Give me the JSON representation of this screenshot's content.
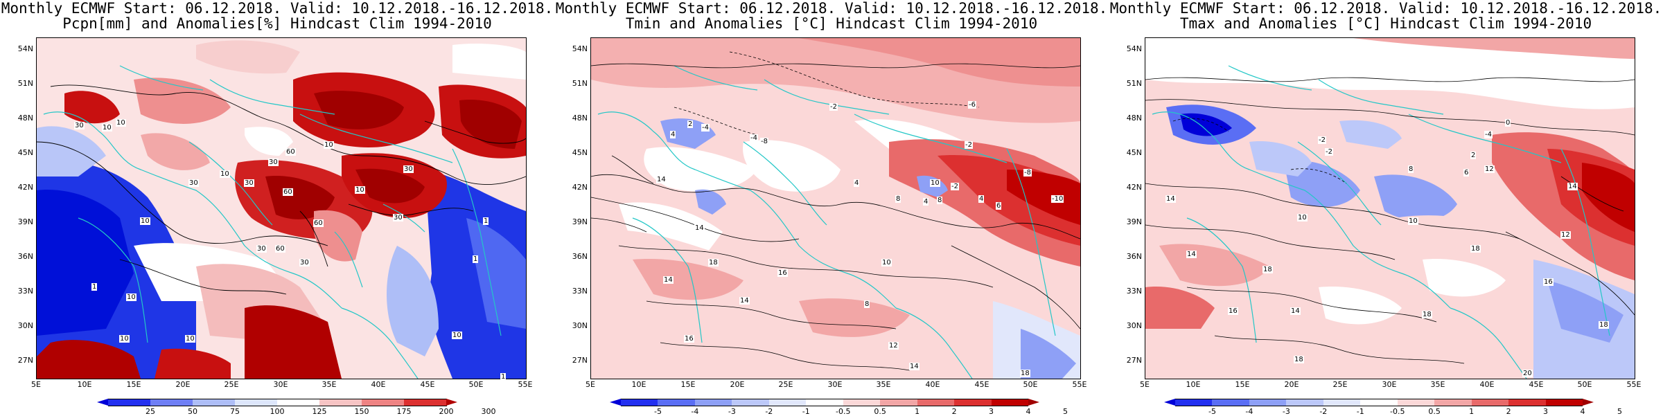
{
  "panels": [
    {
      "id": "pcpn",
      "title_line1": "Monthly ECMWF Start: 06.12.2018. Valid: 10.12.2018.-16.12.2018.",
      "title_line2": "Pcpn[mm] and Anomalies[%] Hindcast Clim 1994-2010",
      "colorbar": {
        "labels": [
          "25",
          "50",
          "75",
          "100",
          "125",
          "150",
          "175",
          "200",
          "300"
        ],
        "colors": [
          "#0000d8",
          "#2330f0",
          "#6f7ff5",
          "#aebef7",
          "#dde6fb",
          "#ffffff",
          "#f7c4c4",
          "#ee8383",
          "#dc3030",
          "#b00000"
        ]
      },
      "contour_labels": [
        "30",
        "10",
        "10",
        "30",
        "10",
        "10",
        "30",
        "30",
        "60",
        "60",
        "30",
        "10",
        "60",
        "30",
        "30",
        "60",
        "10",
        "1",
        "10",
        "1",
        "10",
        "10",
        "1",
        "30",
        "10",
        "1"
      ]
    },
    {
      "id": "tmin",
      "title_line1": "Monthly ECMWF Start: 06.12.2018. Valid: 10.12.2018.-16.12.2018.",
      "title_line2": "Tmin and Anomalies [°C] Hindcast Clim 1994-2010",
      "colorbar": {
        "labels": [
          "-5",
          "-4",
          "-3",
          "-2",
          "-1",
          "-0.5",
          "0.5",
          "1",
          "2",
          "3",
          "4",
          "5"
        ],
        "colors": [
          "#0000d8",
          "#2330f0",
          "#5a6ef4",
          "#8ea0f6",
          "#bcc8f9",
          "#e1e7fb",
          "#ffffff",
          "#fbd8d8",
          "#f2a6a6",
          "#e86a6a",
          "#dc3030",
          "#c00000",
          "#a00000"
        ]
      },
      "contour_labels": [
        "-6",
        "-2",
        "-2",
        "4",
        "2",
        "-4",
        "14",
        "-8",
        "-2",
        "8",
        "10",
        "-4",
        "8",
        "4",
        "4",
        "14",
        "18",
        "14",
        "16",
        "16",
        "14",
        "8",
        "10",
        "12",
        "14",
        "18",
        "-10",
        "4",
        "6",
        "-8"
      ]
    },
    {
      "id": "tmax",
      "title_line1": "Monthly ECMWF Start: 06.12.2018. Valid: 10.12.2018.-16.12.2018.",
      "title_line2": "Tmax and Anomalies [°C] Hindcast Clim 1994-2010",
      "colorbar": {
        "labels": [
          "-5",
          "-4",
          "-3",
          "-2",
          "-1",
          "-0.5",
          "0.5",
          "1",
          "2",
          "3",
          "4",
          "5"
        ],
        "colors": [
          "#0000d8",
          "#2330f0",
          "#5a6ef4",
          "#8ea0f6",
          "#bcc8f9",
          "#e1e7fb",
          "#ffffff",
          "#fbd8d8",
          "#f2a6a6",
          "#e86a6a",
          "#dc3030",
          "#c00000",
          "#a00000"
        ]
      },
      "contour_labels": [
        "0",
        "-4",
        "-2",
        "2",
        "6",
        "14",
        "8",
        "-2",
        "10",
        "12",
        "14",
        "18",
        "16",
        "14",
        "18",
        "18",
        "16",
        "12",
        "14",
        "18",
        "10",
        "18",
        "20"
      ]
    }
  ],
  "lat_labels": [
    "54N",
    "51N",
    "48N",
    "45N",
    "42N",
    "39N",
    "36N",
    "33N",
    "30N",
    "27N"
  ],
  "lon_labels": [
    "5E",
    "10E",
    "15E",
    "20E",
    "25E",
    "30E",
    "35E",
    "40E",
    "45E",
    "50E",
    "55E"
  ]
}
